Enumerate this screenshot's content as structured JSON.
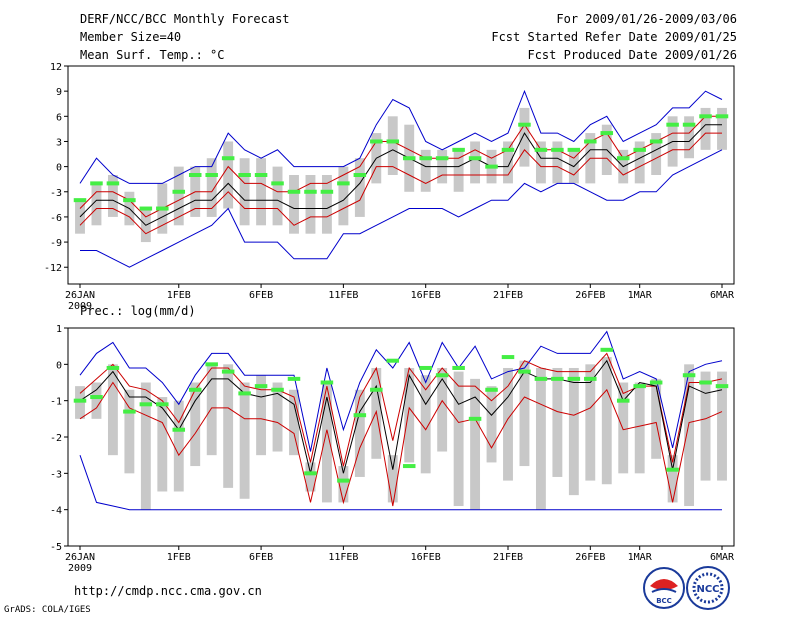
{
  "header": {
    "title": "DERF/NCC/BCC Monthly Forecast",
    "member": "Member Size=40",
    "variable": "Mean Surf. Temp.: °C",
    "period": "For 2009/01/26-2009/03/06",
    "started": "Fcst Started Refer Date 2009/01/25",
    "produced": "Fcst Produced Date 2009/01/26"
  },
  "footer": {
    "url": "http://cmdp.ncc.cma.gov.cn",
    "credit": "GrADS: COLA/IGES",
    "logo_bcc": "BCC",
    "logo_ncc": "NCC"
  },
  "colors": {
    "max_min": "#0000cc",
    "pct": "#cc0000",
    "mean": "#000000",
    "obs": "#44ee44",
    "box": "#c8c8c8"
  },
  "chart_data": [
    {
      "type": "line",
      "title": "Mean Surf. Temp.: °C",
      "ylim": [
        -14,
        12
      ],
      "yticks": [
        12,
        9,
        6,
        3,
        0,
        -3,
        -6,
        -9,
        -12
      ],
      "xticks": [
        {
          "day": 0,
          "label": "26JAN",
          "sub": "2009"
        },
        {
          "day": 6,
          "label": "1FEB"
        },
        {
          "day": 11,
          "label": "6FEB"
        },
        {
          "day": 16,
          "label": "11FEB"
        },
        {
          "day": 21,
          "label": "16FEB"
        },
        {
          "day": 26,
          "label": "21FEB"
        },
        {
          "day": 31,
          "label": "26FEB"
        },
        {
          "day": 34,
          "label": "1MAR"
        },
        {
          "day": 39,
          "label": "6MAR"
        }
      ],
      "x": [
        0,
        1,
        2,
        3,
        4,
        5,
        6,
        7,
        8,
        9,
        10,
        11,
        12,
        13,
        14,
        15,
        16,
        17,
        18,
        19,
        20,
        21,
        22,
        23,
        24,
        25,
        26,
        27,
        28,
        29,
        30,
        31,
        32,
        33,
        34,
        35,
        36,
        37,
        38,
        39
      ],
      "max": [
        -2,
        1,
        -1,
        -2,
        -2,
        -2,
        -1,
        0,
        0,
        4,
        2,
        1,
        2,
        0,
        0,
        0,
        0,
        1,
        5,
        8,
        7,
        3,
        2,
        3,
        4,
        3,
        4,
        9,
        4,
        4,
        3,
        5,
        6,
        3,
        4,
        5,
        7,
        7,
        9,
        8
      ],
      "min": [
        -10,
        -10,
        -11,
        -12,
        -11,
        -10,
        -9,
        -8,
        -7,
        -5,
        -9,
        -9,
        -9,
        -11,
        -11,
        -11,
        -8,
        -8,
        -7,
        -6,
        -5,
        -5,
        -5,
        -6,
        -5,
        -4,
        -4,
        -2,
        -3,
        -2,
        -2,
        -3,
        -4,
        -4,
        -3,
        -3,
        -1,
        0,
        1,
        2
      ],
      "pct_high": [
        -5,
        -3,
        -3,
        -4,
        -6,
        -5,
        -4,
        -3,
        -3,
        0,
        -2,
        -2,
        -3,
        -3,
        -2,
        -2,
        -1,
        0,
        3,
        3,
        2,
        1,
        1,
        1,
        2,
        1,
        2,
        5,
        2,
        2,
        1,
        3,
        4,
        1,
        2,
        3,
        4,
        4,
        6,
        6
      ],
      "pct_low": [
        -7,
        -5,
        -5,
        -6,
        -8,
        -7,
        -6,
        -5,
        -5,
        -3,
        -5,
        -5,
        -5,
        -7,
        -6,
        -6,
        -5,
        -4,
        0,
        0,
        -1,
        -2,
        -1,
        -1,
        -1,
        -1,
        -1,
        2,
        0,
        0,
        -1,
        1,
        1,
        -1,
        0,
        1,
        2,
        2,
        4,
        4
      ],
      "mean": [
        -6,
        -4,
        -4,
        -5,
        -7,
        -6,
        -5,
        -4,
        -4,
        -2,
        -4,
        -4,
        -4,
        -5,
        -5,
        -5,
        -4,
        -2,
        1,
        2,
        1,
        0,
        0,
        0,
        1,
        0,
        0,
        4,
        1,
        1,
        0,
        2,
        2,
        0,
        1,
        2,
        3,
        3,
        5,
        5
      ],
      "box_high": [
        -4,
        -2,
        -1,
        -3,
        -5,
        -2,
        0,
        0,
        1,
        3,
        1,
        1,
        0,
        -1,
        -1,
        -1,
        0,
        1,
        4,
        6,
        5,
        2,
        2,
        2,
        3,
        2,
        3,
        7,
        3,
        3,
        2,
        4,
        5,
        2,
        3,
        4,
        6,
        6,
        7,
        7
      ],
      "box_low": [
        -8,
        -7,
        -6,
        -7,
        -9,
        -8,
        -7,
        -6,
        -6,
        -5,
        -7,
        -7,
        -7,
        -8,
        -8,
        -8,
        -7,
        -6,
        -2,
        -1,
        -3,
        -3,
        -2,
        -3,
        -2,
        -2,
        -2,
        0,
        -2,
        -2,
        -2,
        -2,
        -1,
        -2,
        -2,
        -1,
        0,
        1,
        2,
        2
      ],
      "obs": [
        -4,
        -2,
        -2,
        -4,
        -5,
        -5,
        -3,
        -1,
        -1,
        1,
        -1,
        -1,
        -2,
        -3,
        -3,
        -3,
        -2,
        -1,
        3,
        3,
        1,
        1,
        1,
        2,
        1,
        0,
        2,
        5,
        2,
        2,
        2,
        3,
        4,
        1,
        2,
        3,
        5,
        5,
        6,
        6
      ]
    },
    {
      "type": "line",
      "title": "Prec.: log(mm/d)",
      "ylim": [
        -5,
        1
      ],
      "yticks": [
        1,
        0,
        -1,
        -2,
        -3,
        -4,
        -5
      ],
      "xticks": [
        {
          "day": 0,
          "label": "26JAN",
          "sub": "2009"
        },
        {
          "day": 6,
          "label": "1FEB"
        },
        {
          "day": 11,
          "label": "6FEB"
        },
        {
          "day": 16,
          "label": "11FEB"
        },
        {
          "day": 21,
          "label": "16FEB"
        },
        {
          "day": 26,
          "label": "21FEB"
        },
        {
          "day": 31,
          "label": "26FEB"
        },
        {
          "day": 34,
          "label": "1MAR"
        },
        {
          "day": 39,
          "label": "6MAR"
        }
      ],
      "x": [
        0,
        1,
        2,
        3,
        4,
        5,
        6,
        7,
        8,
        9,
        10,
        11,
        12,
        13,
        14,
        15,
        16,
        17,
        18,
        19,
        20,
        21,
        22,
        23,
        24,
        25,
        26,
        27,
        28,
        29,
        30,
        31,
        32,
        33,
        34,
        35,
        36,
        37,
        38,
        39
      ],
      "max": [
        -0.3,
        0.3,
        0.6,
        -0.1,
        -0.1,
        -0.5,
        -1.1,
        -0.3,
        0.3,
        0.3,
        -0.3,
        -0.3,
        -0.3,
        -0.3,
        -2.4,
        -0.1,
        -1.8,
        -0.5,
        0.4,
        -0.1,
        0.6,
        -0.5,
        0.6,
        -0.1,
        0.5,
        -0.4,
        -0.2,
        -0.1,
        0.5,
        0.3,
        0.3,
        0.3,
        0.9,
        -0.4,
        -0.2,
        -0.4,
        -2.3,
        -0.2,
        0,
        0.1
      ],
      "min": [
        -2.5,
        -3.8,
        -3.9,
        -4,
        -4,
        -4,
        -4,
        -4,
        -4,
        -4,
        -4,
        -4,
        -4,
        -4,
        -4,
        -4,
        -4,
        -4,
        -4,
        -4,
        -4,
        -4,
        -4,
        -4,
        -4,
        -4,
        -4,
        -4,
        -4,
        -4,
        -4,
        -4,
        -4,
        -4,
        -4,
        -4,
        -4,
        -4,
        -4,
        -4
      ],
      "pct_high": [
        -0.8,
        -0.4,
        0,
        -0.6,
        -0.7,
        -1,
        -1.6,
        -0.7,
        -0.1,
        -0.1,
        -0.6,
        -0.7,
        -0.7,
        -0.9,
        -2.7,
        -0.6,
        -2.8,
        -0.9,
        -0.1,
        -2.1,
        -0.1,
        -0.7,
        -0.1,
        -0.6,
        -0.6,
        -1,
        -0.6,
        0.1,
        -0.1,
        -0.2,
        -0.2,
        -0.2,
        0.3,
        -0.8,
        -0.6,
        -0.6,
        -2.7,
        -0.5,
        -0.5,
        -0.4
      ],
      "pct_low": [
        -1.5,
        -1.2,
        -0.5,
        -1.2,
        -1.4,
        -1.6,
        -2.5,
        -1.9,
        -1.2,
        -1.2,
        -1.5,
        -1.5,
        -1.6,
        -1.9,
        -3.8,
        -1.8,
        -3.8,
        -2.3,
        -1.3,
        -3.9,
        -1.2,
        -1.8,
        -1,
        -1.6,
        -1.5,
        -2.3,
        -1.5,
        -0.9,
        -1.1,
        -1.3,
        -1.4,
        -1.2,
        -0.7,
        -1.8,
        -1.7,
        -1.6,
        -3.8,
        -1.6,
        -1.5,
        -1.3
      ],
      "mean": [
        -1,
        -0.7,
        -0.2,
        -0.9,
        -0.9,
        -1.2,
        -1.8,
        -1,
        -0.4,
        -0.4,
        -0.8,
        -0.9,
        -0.8,
        -1.1,
        -3,
        -0.9,
        -3,
        -1.3,
        -0.6,
        -2.9,
        -0.3,
        -1.1,
        -0.4,
        -1.1,
        -0.9,
        -1.4,
        -0.9,
        -0.2,
        -0.4,
        -0.4,
        -0.5,
        -0.5,
        0.1,
        -1,
        -0.5,
        -0.6,
        -2.9,
        -0.6,
        -0.8,
        -0.7
      ],
      "box_high": [
        -0.6,
        -0.5,
        0,
        -0.7,
        -0.5,
        -0.9,
        -1,
        -0.5,
        0,
        0,
        -0.5,
        -0.3,
        -0.5,
        -0.7,
        -2.7,
        -0.5,
        -2.8,
        -0.7,
        -0.1,
        -2.5,
        -0.1,
        -0.3,
        -0.1,
        -0.2,
        -0.4,
        -0.6,
        -0.1,
        0.1,
        -0.1,
        -0.1,
        -0.1,
        0,
        0.2,
        -0.5,
        -0.5,
        -0.4,
        -2.5,
        0,
        -0.2,
        -0.2
      ],
      "box_low": [
        -1.5,
        -1.5,
        -2.5,
        -3,
        -4,
        -3.5,
        -3.5,
        -2.8,
        -2.5,
        -3.4,
        -3.7,
        -2.5,
        -2.4,
        -2.5,
        -3.5,
        -3.8,
        -3.8,
        -3.1,
        -2.6,
        -3.8,
        -2.7,
        -3,
        -2.4,
        -3.9,
        -4,
        -2.7,
        -3.2,
        -2.8,
        -4,
        -3.1,
        -3.6,
        -3.2,
        -3.3,
        -3,
        -3,
        -2.6,
        -3.8,
        -3.9,
        -3.2,
        -3.2
      ],
      "obs": [
        -1,
        -0.9,
        -0.1,
        -1.3,
        -1.1,
        -1.1,
        -1.8,
        -0.7,
        0,
        -0.2,
        -0.8,
        -0.6,
        -0.7,
        -0.4,
        -3,
        -0.5,
        -3.2,
        -1.4,
        -0.7,
        0.1,
        -2.8,
        -0.1,
        -0.3,
        -0.1,
        -1.5,
        -0.7,
        0.2,
        -0.2,
        -0.4,
        -0.4,
        -0.4,
        -0.4,
        0.4,
        -1,
        -0.6,
        -0.5,
        -2.9,
        -0.3,
        -0.5,
        -0.6
      ]
    }
  ]
}
